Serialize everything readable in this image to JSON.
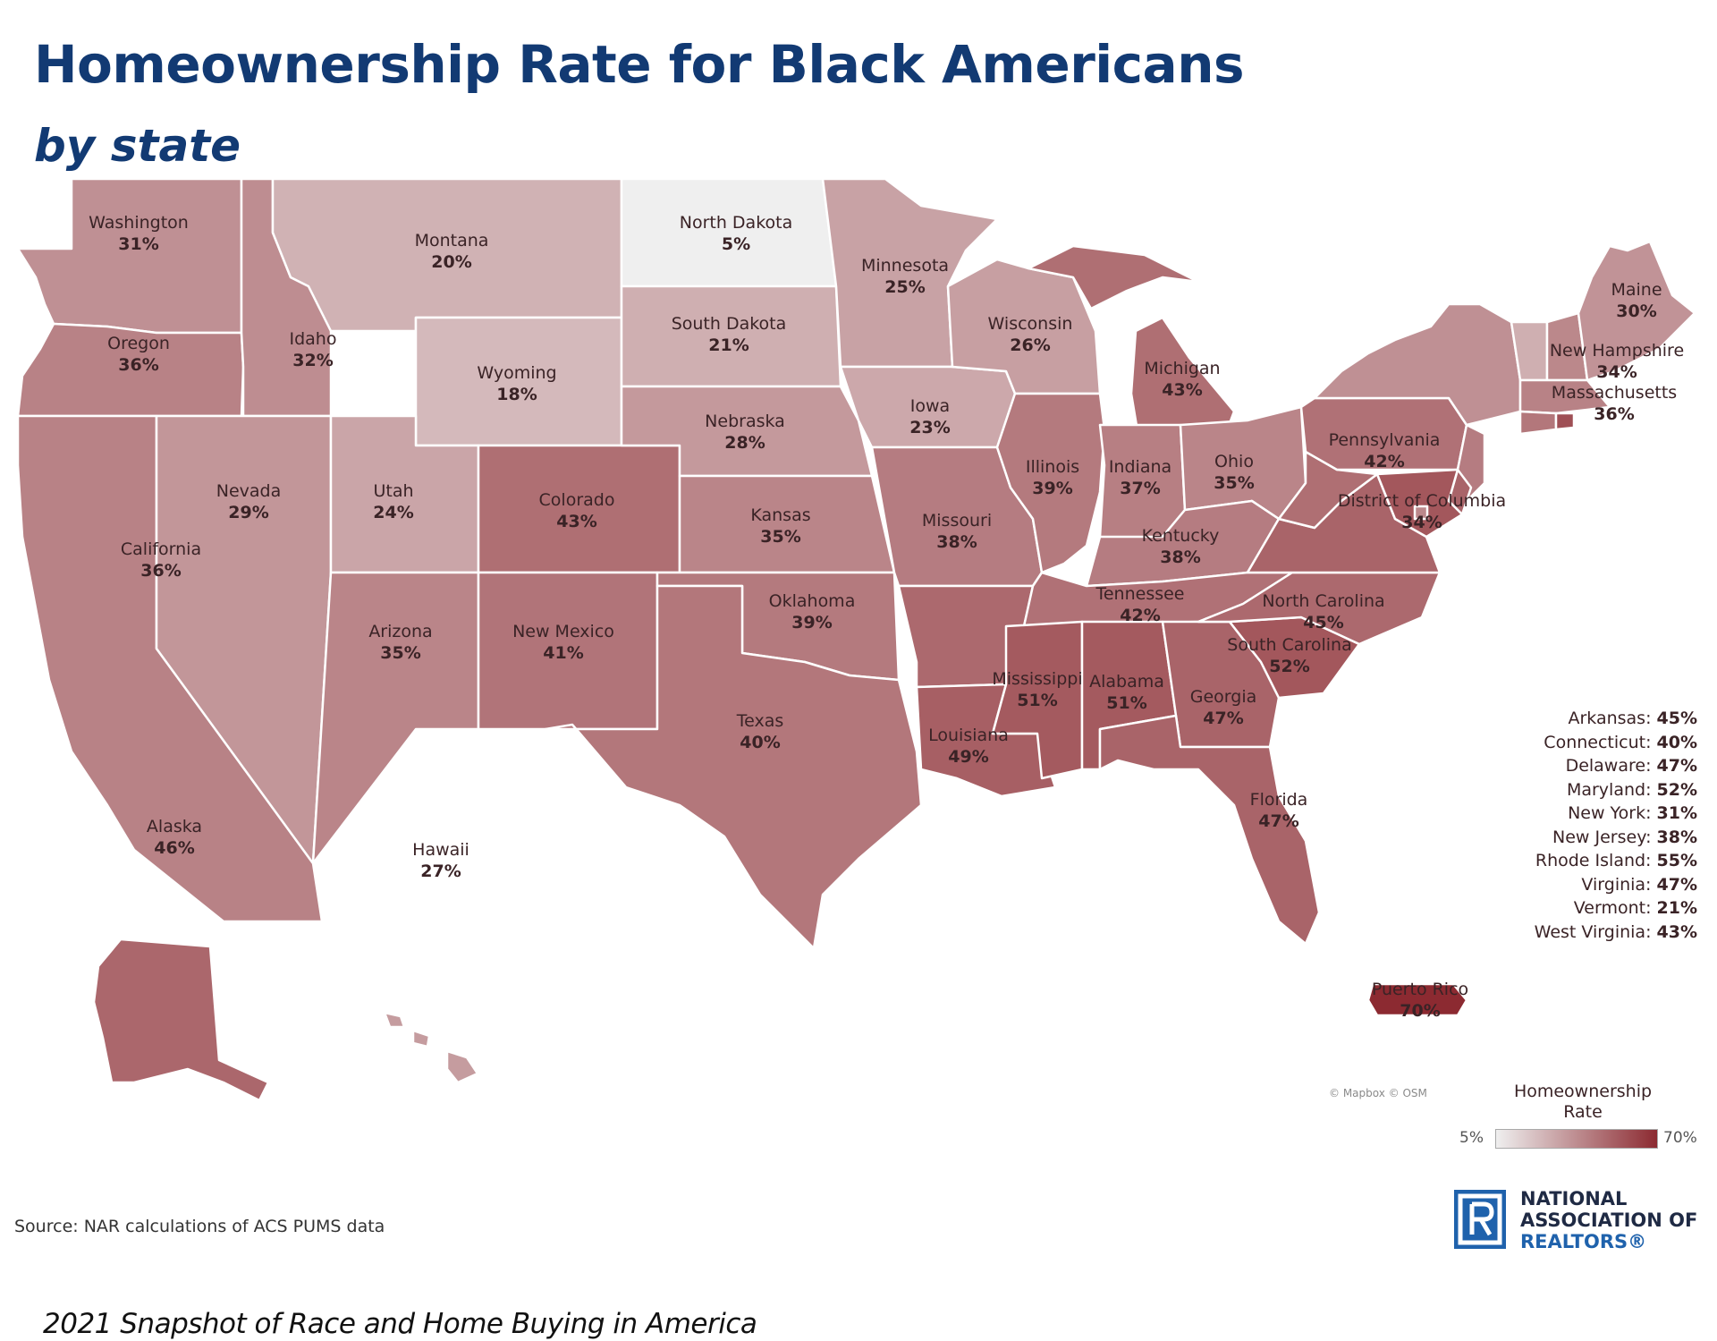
{
  "title": "Homeownership Rate for Black Americans",
  "subtitle": "by state",
  "source": "Source: NAR calculations of ACS PUMS data",
  "footer": "2021 Snapshot of Race and Home Buying in America",
  "attribution": "© Mapbox © OSM",
  "legend": {
    "title_line1": "Homeownership",
    "title_line2": "Rate",
    "min_label": "5%",
    "max_label": "70%",
    "min": 5,
    "max": 70,
    "color_low": "#efefef",
    "color_high": "#8c2a31"
  },
  "logo": {
    "line1": "NATIONAL",
    "line2": "ASSOCIATION OF",
    "line3": "REALTORS®",
    "color": "#1f62ac"
  },
  "colors": {
    "title": "#123a73",
    "border": "#ffffff"
  },
  "states": [
    {
      "name": "Washington",
      "value": 31,
      "label": "31%"
    },
    {
      "name": "Oregon",
      "value": 36,
      "label": "36%"
    },
    {
      "name": "California",
      "value": 36,
      "label": "36%"
    },
    {
      "name": "Idaho",
      "value": 32,
      "label": "32%"
    },
    {
      "name": "Nevada",
      "value": 29,
      "label": "29%"
    },
    {
      "name": "Montana",
      "value": 20,
      "label": "20%"
    },
    {
      "name": "Wyoming",
      "value": 18,
      "label": "18%"
    },
    {
      "name": "Utah",
      "value": 24,
      "label": "24%"
    },
    {
      "name": "Arizona",
      "value": 35,
      "label": "35%"
    },
    {
      "name": "Colorado",
      "value": 43,
      "label": "43%"
    },
    {
      "name": "New Mexico",
      "value": 41,
      "label": "41%"
    },
    {
      "name": "North Dakota",
      "value": 5,
      "label": "5%"
    },
    {
      "name": "South Dakota",
      "value": 21,
      "label": "21%"
    },
    {
      "name": "Nebraska",
      "value": 28,
      "label": "28%"
    },
    {
      "name": "Kansas",
      "value": 35,
      "label": "35%"
    },
    {
      "name": "Oklahoma",
      "value": 39,
      "label": "39%"
    },
    {
      "name": "Texas",
      "value": 40,
      "label": "40%"
    },
    {
      "name": "Minnesota",
      "value": 25,
      "label": "25%"
    },
    {
      "name": "Iowa",
      "value": 23,
      "label": "23%"
    },
    {
      "name": "Missouri",
      "value": 38,
      "label": "38%"
    },
    {
      "name": "Arkansas",
      "value": 45,
      "label": ""
    },
    {
      "name": "Louisiana",
      "value": 49,
      "label": "49%"
    },
    {
      "name": "Wisconsin",
      "value": 26,
      "label": "26%"
    },
    {
      "name": "Illinois",
      "value": 39,
      "label": "39%"
    },
    {
      "name": "Michigan",
      "value": 43,
      "label": "43%"
    },
    {
      "name": "Indiana",
      "value": 37,
      "label": "37%"
    },
    {
      "name": "Ohio",
      "value": 35,
      "label": "35%"
    },
    {
      "name": "Kentucky",
      "value": 38,
      "label": "38%"
    },
    {
      "name": "Tennessee",
      "value": 42,
      "label": "42%"
    },
    {
      "name": "Mississippi",
      "value": 51,
      "label": "51%"
    },
    {
      "name": "Alabama",
      "value": 51,
      "label": "51%"
    },
    {
      "name": "Georgia",
      "value": 47,
      "label": "47%"
    },
    {
      "name": "Florida",
      "value": 47,
      "label": "47%"
    },
    {
      "name": "South Carolina",
      "value": 52,
      "label": "52%"
    },
    {
      "name": "North Carolina",
      "value": 45,
      "label": "45%"
    },
    {
      "name": "Virginia",
      "value": 47,
      "label": ""
    },
    {
      "name": "West Virginia",
      "value": 43,
      "label": ""
    },
    {
      "name": "Pennsylvania",
      "value": 42,
      "label": "42%"
    },
    {
      "name": "New York",
      "value": 31,
      "label": ""
    },
    {
      "name": "Vermont",
      "value": 21,
      "label": ""
    },
    {
      "name": "New Hampshire",
      "value": 34,
      "label": "34%"
    },
    {
      "name": "Maine",
      "value": 30,
      "label": "30%"
    },
    {
      "name": "Massachusetts",
      "value": 36,
      "label": "36%"
    },
    {
      "name": "Connecticut",
      "value": 40,
      "label": ""
    },
    {
      "name": "Rhode Island",
      "value": 55,
      "label": ""
    },
    {
      "name": "New Jersey",
      "value": 38,
      "label": ""
    },
    {
      "name": "Delaware",
      "value": 47,
      "label": ""
    },
    {
      "name": "Maryland",
      "value": 52,
      "label": ""
    },
    {
      "name": "District of Columbia",
      "value": 34,
      "label": "34%"
    },
    {
      "name": "Alaska",
      "value": 46,
      "label": "46%"
    },
    {
      "name": "Hawaii",
      "value": 27,
      "label": "27%"
    },
    {
      "name": "Puerto Rico",
      "value": 70,
      "label": "70%"
    }
  ],
  "side_list": [
    {
      "name": "Arkansas:",
      "value": "45%"
    },
    {
      "name": "Connecticut:",
      "value": "40%"
    },
    {
      "name": "Delaware:",
      "value": "47%"
    },
    {
      "name": "Maryland:",
      "value": "52%"
    },
    {
      "name": "New York:",
      "value": "31%"
    },
    {
      "name": "New Jersey:",
      "value": "38%"
    },
    {
      "name": "Rhode Island:",
      "value": "55%"
    },
    {
      "name": "Virginia:",
      "value": "47%"
    },
    {
      "name": "Vermont:",
      "value": "21%"
    },
    {
      "name": "West Virginia:",
      "value": "43%"
    }
  ]
}
